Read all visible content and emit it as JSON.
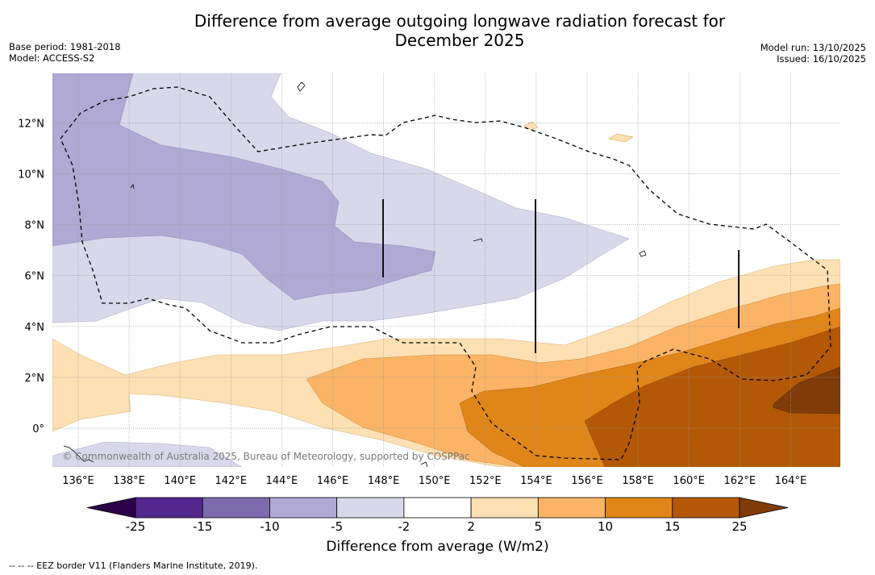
{
  "title_line1": "Difference from average outgoing longwave radiation forecast for",
  "title_line2": "December 2025",
  "meta_left": {
    "base_period": "Base period: 1981-2018",
    "model": "Model: ACCESS-S2"
  },
  "meta_right": {
    "model_run": "Model run: 13/10/2025",
    "issued": "Issued: 16/10/2025"
  },
  "map": {
    "lon_labels": [
      "136°E",
      "138°E",
      "140°E",
      "142°E",
      "144°E",
      "146°E",
      "148°E",
      "150°E",
      "152°E",
      "154°E",
      "156°E",
      "158°E",
      "160°E",
      "162°E",
      "164°E"
    ],
    "lat_labels": [
      "12°N",
      "10°N",
      "8°N",
      "6°N",
      "4°N",
      "2°N",
      "0°"
    ],
    "copyright": "© Commonwealth of Australia 2025, Bureau of Meteorology, supported by COSPPac"
  },
  "colorbar": {
    "title": "Difference from average (W/m2)",
    "labels": [
      "-25",
      "-15",
      "-10",
      "-5",
      "-2",
      "2",
      "5",
      "10",
      "15",
      "25"
    ],
    "colors": [
      "#54278f",
      "#7d6bad",
      "#b0a9d3",
      "#d8d8ea",
      "#ffffff",
      "#fde0b3",
      "#fbb466",
      "#e08518",
      "#b35806",
      "#7f3b08",
      "#2d004b"
    ]
  },
  "footnote": "--  --  -- EEZ border V11 (Flanders Marine Institute, 2019)."
}
